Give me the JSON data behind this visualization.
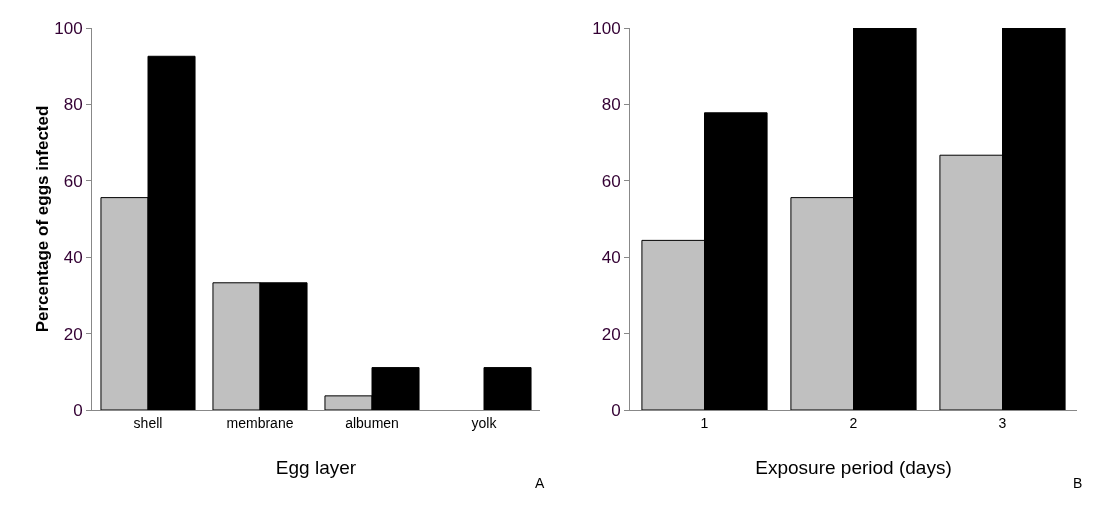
{
  "chart_data": [
    {
      "type": "bar",
      "categories": [
        "shell",
        "membrane",
        "albumen",
        "yolk"
      ],
      "series": [
        {
          "color": "#c0c0c0",
          "values": [
            55.6,
            33.3,
            3.7,
            null
          ]
        },
        {
          "color": "#000000",
          "values": [
            92.6,
            33.3,
            11.1,
            11.1
          ]
        }
      ],
      "xlabel": "Egg layer",
      "ylabel": "Percentage of eggs infected",
      "ylim": [
        0,
        100
      ],
      "yticks": [
        0,
        20,
        40,
        60,
        80,
        100
      ],
      "grid": false,
      "annotations": [
        "A"
      ]
    },
    {
      "type": "bar",
      "categories": [
        "1",
        "2",
        "3"
      ],
      "series": [
        {
          "color": "#c0c0c0",
          "values": [
            44.4,
            55.6,
            66.7
          ]
        },
        {
          "color": "#000000",
          "values": [
            77.8,
            100,
            100
          ]
        }
      ],
      "xlabel": "Exposure period (days)",
      "ylim": [
        0,
        100
      ],
      "yticks": [
        0,
        20,
        40,
        60,
        80,
        100
      ],
      "grid": false,
      "annotations": [
        "B"
      ]
    }
  ]
}
